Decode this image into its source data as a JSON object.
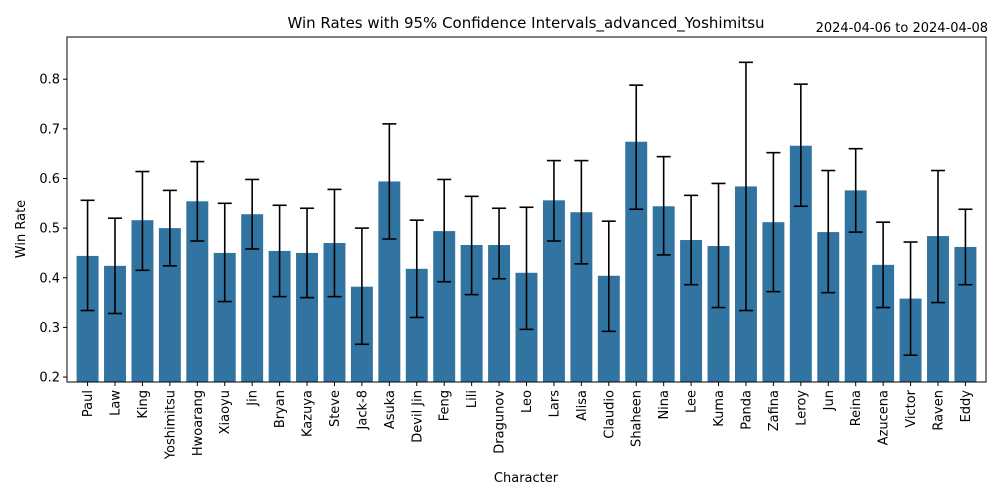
{
  "chart_data": {
    "type": "bar",
    "title": "Win Rates with 95% Confidence Intervals_advanced_Yoshimitsu",
    "subtitle": "2024-04-06 to 2024-04-08",
    "xlabel": "Character",
    "ylabel": "Win Rate",
    "ylim": [
      0.19,
      0.885
    ],
    "yticks": [
      "0.2",
      "0.3",
      "0.4",
      "0.5",
      "0.6",
      "0.7",
      "0.8"
    ],
    "bar_color": "#3274a1",
    "error_color": "#000000",
    "grid": false,
    "categories": [
      "Paul",
      "Law",
      "King",
      "Yoshimitsu",
      "Hwoarang",
      "Xiaoyu",
      "Jin",
      "Bryan",
      "Kazuya",
      "Steve",
      "Jack-8",
      "Asuka",
      "Devil Jin",
      "Feng",
      "Lili",
      "Dragunov",
      "Leo",
      "Lars",
      "Alisa",
      "Claudio",
      "Shaheen",
      "Nina",
      "Lee",
      "Kuma",
      "Panda",
      "Zafina",
      "Leroy",
      "Jun",
      "Reina",
      "Azucena",
      "Victor",
      "Raven",
      "Eddy"
    ],
    "values": [
      0.444,
      0.424,
      0.516,
      0.5,
      0.554,
      0.45,
      0.528,
      0.454,
      0.45,
      0.47,
      0.382,
      0.594,
      0.418,
      0.494,
      0.466,
      0.466,
      0.41,
      0.556,
      0.532,
      0.404,
      0.674,
      0.544,
      0.476,
      0.464,
      0.584,
      0.512,
      0.666,
      0.492,
      0.576,
      0.426,
      0.358,
      0.484,
      0.462
    ],
    "ci_lower": [
      0.334,
      0.328,
      0.415,
      0.424,
      0.474,
      0.352,
      0.458,
      0.362,
      0.36,
      0.362,
      0.266,
      0.478,
      0.32,
      0.392,
      0.366,
      0.398,
      0.296,
      0.474,
      0.428,
      0.292,
      0.538,
      0.446,
      0.386,
      0.34,
      0.334,
      0.372,
      0.544,
      0.37,
      0.492,
      0.34,
      0.244,
      0.35,
      0.386
    ],
    "ci_upper": [
      0.556,
      0.52,
      0.614,
      0.576,
      0.634,
      0.55,
      0.598,
      0.546,
      0.54,
      0.578,
      0.5,
      0.71,
      0.516,
      0.598,
      0.564,
      0.54,
      0.542,
      0.636,
      0.636,
      0.514,
      0.788,
      0.644,
      0.566,
      0.59,
      0.834,
      0.652,
      0.79,
      0.616,
      0.66,
      0.512,
      0.472,
      0.616,
      0.538
    ]
  }
}
